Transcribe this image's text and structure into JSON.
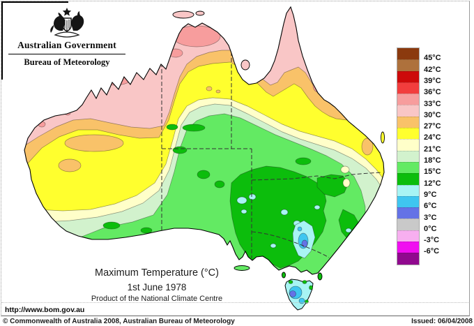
{
  "header": {
    "government": "Australian Government",
    "bureau": "Bureau of Meteorology"
  },
  "titles": {
    "main": "Maximum Temperature (°C)",
    "date": "1st June 1978",
    "product": "Product of the National Climate Centre"
  },
  "legend": {
    "items": [
      {
        "color": "#8b3a0e",
        "label": "45°C"
      },
      {
        "color": "#ae713c",
        "label": "42°C"
      },
      {
        "color": "#cd0a0a",
        "label": "39°C"
      },
      {
        "color": "#f23d3d",
        "label": "36°C"
      },
      {
        "color": "#f79d9d",
        "label": "33°C"
      },
      {
        "color": "#f9c6c6",
        "label": "30°C"
      },
      {
        "color": "#f9c269",
        "label": "27°C"
      },
      {
        "color": "#ffff2e",
        "label": "24°C"
      },
      {
        "color": "#ffffc9",
        "label": "21°C"
      },
      {
        "color": "#d2f2cd",
        "label": "18°C"
      },
      {
        "color": "#63ea63",
        "label": "15°C"
      },
      {
        "color": "#0cbd0c",
        "label": "12°C"
      },
      {
        "color": "#a8f4f4",
        "label": "9°C"
      },
      {
        "color": "#3fc6f0",
        "label": "6°C"
      },
      {
        "color": "#6472e6",
        "label": "3°C"
      },
      {
        "color": "#c9c9c9",
        "label": "0°C"
      },
      {
        "color": "#f7aff0",
        "label": "-3°C"
      },
      {
        "color": "#f00ff0",
        "label": "-6°C"
      },
      {
        "color": "#90098e",
        "label": ""
      }
    ]
  },
  "palette": {
    "darkbrown": "#8b3a0e",
    "brown": "#ae713c",
    "darkred": "#cd0a0a",
    "red": "#f23d3d",
    "salmon": "#f79d9d",
    "pink": "#f9c6c6",
    "orange": "#f9c269",
    "yellow": "#ffff2e",
    "paleyellow": "#ffffc9",
    "palegreen": "#d2f2cd",
    "lightgreen": "#63ea63",
    "green": "#0cbd0c",
    "palecyan": "#a8f4f4",
    "cyanblue": "#3fc6f0",
    "blue": "#6472e6",
    "coastline": "#000000",
    "border_dash": "#333333"
  },
  "footer": {
    "url": "http://www.bom.gov.au",
    "copyright": "© Commonwealth of Australia 2008, Australian Bureau of Meteorology",
    "issued": "Issued: 06/04/2008"
  }
}
